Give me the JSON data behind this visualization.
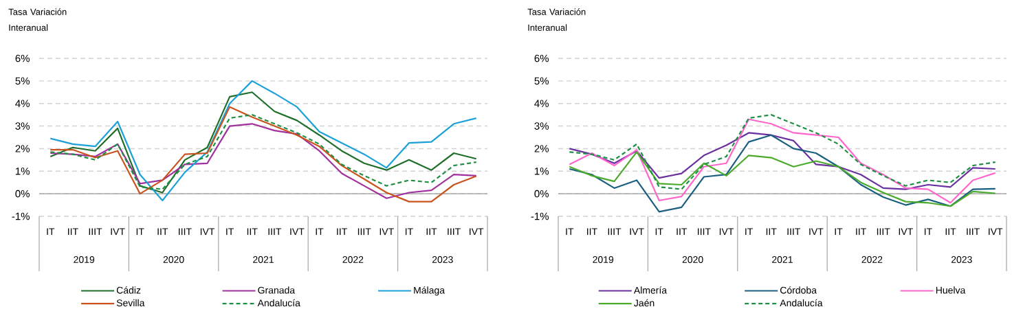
{
  "chart_data": [
    {
      "type": "line",
      "ylabel": "Tasa Variación Interanual",
      "categories": [
        "IT",
        "IIT",
        "IIIT",
        "IVT",
        "IT",
        "IIT",
        "IIIT",
        "IVT",
        "IT",
        "IIT",
        "IIIT",
        "IVT",
        "IT",
        "IIT",
        "IIIT",
        "IVT",
        "IT",
        "IIT",
        "IIIT",
        "IVT"
      ],
      "annotations": [
        "2019",
        "2020",
        "2021",
        "2022",
        "2023"
      ],
      "series": [
        {
          "name": "Cádiz",
          "color": "#1f6e2a",
          "values": [
            1.65,
            2.05,
            1.9,
            2.9,
            0.35,
            0.05,
            1.5,
            2.05,
            4.3,
            4.5,
            3.65,
            3.25,
            2.6,
            1.9,
            1.35,
            1.05,
            1.5,
            1.05,
            1.8,
            1.55
          ]
        },
        {
          "name": "Granada",
          "color": "#a0309e",
          "values": [
            1.8,
            1.75,
            1.65,
            2.2,
            0.45,
            0.6,
            1.3,
            1.35,
            3.0,
            3.1,
            2.8,
            2.65,
            1.9,
            0.9,
            0.35,
            -0.2,
            0.05,
            0.15,
            0.85,
            0.8
          ]
        },
        {
          "name": "Málaga",
          "color": "#1ba1d8",
          "values": [
            2.45,
            2.2,
            2.1,
            3.2,
            0.85,
            -0.3,
            0.95,
            1.85,
            4.0,
            5.0,
            4.45,
            3.85,
            2.75,
            2.25,
            1.75,
            1.15,
            2.25,
            2.3,
            3.1,
            3.35
          ]
        },
        {
          "name": "Sevilla",
          "color": "#c9531c",
          "values": [
            1.95,
            1.95,
            1.6,
            1.9,
            0.0,
            0.6,
            1.75,
            1.8,
            3.85,
            3.4,
            3.0,
            2.6,
            2.1,
            1.25,
            0.65,
            0.05,
            -0.35,
            -0.35,
            0.4,
            0.78
          ]
        },
        {
          "name": "Andalucía",
          "color": "#1e9044",
          "line_style": "dashed",
          "values": [
            1.85,
            1.75,
            1.5,
            2.2,
            0.3,
            0.2,
            1.3,
            1.65,
            3.35,
            3.5,
            3.1,
            2.7,
            2.2,
            1.3,
            0.8,
            0.35,
            0.6,
            0.5,
            1.25,
            1.4
          ]
        }
      ],
      "ylim": [
        -1,
        6
      ],
      "yticks": [
        {
          "value": -1,
          "label": "-1%"
        },
        {
          "value": 0,
          "label": "0%"
        },
        {
          "value": 1,
          "label": "1%"
        },
        {
          "value": 2,
          "label": "2%"
        },
        {
          "value": 3,
          "label": "3%"
        },
        {
          "value": 4,
          "label": "4%"
        },
        {
          "value": 5,
          "label": "5%"
        },
        {
          "value": 6,
          "label": "6%"
        }
      ],
      "grid": "y",
      "legend": "bottom"
    },
    {
      "type": "line",
      "ylabel": "Tasa Variación Interanual",
      "categories": [
        "IT",
        "IIT",
        "IIIT",
        "IVT",
        "IT",
        "IIT",
        "IIIT",
        "IVT",
        "IT",
        "IIT",
        "IIIT",
        "IVT",
        "IT",
        "IIT",
        "IIIT",
        "IVT",
        "IT",
        "IIT",
        "IIIT",
        "IVT"
      ],
      "annotations": [
        "2019",
        "2020",
        "2021",
        "2022",
        "2023"
      ],
      "series": [
        {
          "name": "Almería",
          "color": "#6a30a0",
          "values": [
            2.0,
            1.75,
            1.35,
            1.9,
            0.7,
            0.9,
            1.7,
            2.15,
            2.7,
            2.6,
            2.35,
            1.3,
            1.2,
            0.85,
            0.25,
            0.2,
            0.4,
            0.3,
            1.15,
            1.1
          ]
        },
        {
          "name": "Córdoba",
          "color": "#1a5e80",
          "values": [
            1.1,
            0.85,
            0.25,
            0.6,
            -0.8,
            -0.6,
            0.75,
            0.85,
            2.3,
            2.6,
            2.0,
            1.8,
            1.2,
            0.4,
            -0.15,
            -0.5,
            -0.25,
            -0.55,
            0.2,
            0.22
          ]
        },
        {
          "name": "Huelva",
          "color": "#ff66cc",
          "values": [
            1.3,
            1.8,
            1.25,
            1.95,
            -0.3,
            -0.12,
            1.2,
            1.35,
            3.3,
            3.1,
            2.7,
            2.6,
            2.5,
            1.35,
            0.85,
            0.25,
            0.2,
            -0.4,
            0.6,
            0.92
          ]
        },
        {
          "name": "Jaén",
          "color": "#4aaa2c",
          "values": [
            1.2,
            0.8,
            0.55,
            1.85,
            0.45,
            0.4,
            1.35,
            0.8,
            1.7,
            1.6,
            1.2,
            1.45,
            1.2,
            0.5,
            0.05,
            -0.35,
            -0.4,
            -0.55,
            0.1,
            0.02
          ]
        },
        {
          "name": "Andalucía",
          "color": "#1e9044",
          "line_style": "dashed",
          "values": [
            1.85,
            1.75,
            1.5,
            2.2,
            0.3,
            0.2,
            1.3,
            1.65,
            3.35,
            3.5,
            3.1,
            2.7,
            2.2,
            1.3,
            0.8,
            0.35,
            0.6,
            0.5,
            1.25,
            1.4
          ]
        }
      ],
      "ylim": [
        -1,
        6
      ],
      "yticks": [
        {
          "value": -1,
          "label": "-1%"
        },
        {
          "value": 0,
          "label": "0%"
        },
        {
          "value": 1,
          "label": "1%"
        },
        {
          "value": 2,
          "label": "2%"
        },
        {
          "value": 3,
          "label": "3%"
        },
        {
          "value": 4,
          "label": "4%"
        },
        {
          "value": 5,
          "label": "5%"
        },
        {
          "value": 6,
          "label": "6%"
        }
      ],
      "grid": "y",
      "legend": "bottom"
    }
  ]
}
